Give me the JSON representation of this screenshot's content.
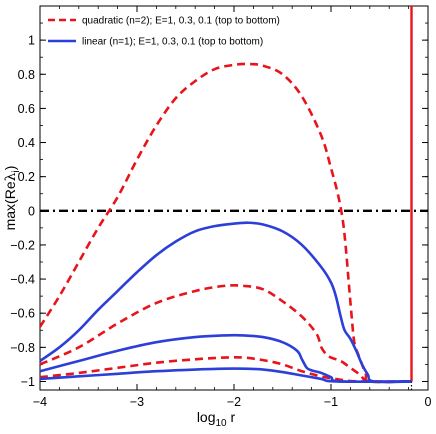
{
  "chart_data": {
    "type": "line",
    "xlabel": "log",
    "xlabel_sub": "10",
    "xlabel_tail": " r",
    "ylabel": "max(Re",
    "ylabel_sym": "λ",
    "ylabel_sub": "i",
    "ylabel_tail": ")",
    "xlim": [
      -4,
      0
    ],
    "ylim": [
      -1.05,
      1.2
    ],
    "xticks": [
      -4,
      -3,
      -2,
      -1,
      0
    ],
    "xtick_labels": [
      "−4",
      "−3",
      "−2",
      "−1",
      "0"
    ],
    "yticks": [
      -1,
      -0.8,
      -0.6,
      -0.4,
      -0.2,
      0,
      0.2,
      0.4,
      0.6,
      0.8,
      1
    ],
    "ytick_labels": [
      "−1",
      "−0.8",
      "−0.6",
      "−0.4",
      "−0.2",
      "0",
      "0.2",
      "0.4",
      "0.6",
      "0.8",
      "1"
    ],
    "grid": false,
    "legend_position": "top-left",
    "legend": [
      {
        "label": "quadratic (n=2); E=1, 0.3, 0.1 (top to bottom)",
        "color": "#e8141c",
        "style": "dashed"
      },
      {
        "label": "linear (n=1); E=1, 0.3, 0.1 (top to bottom)",
        "color": "#2c3fd9",
        "style": "solid"
      }
    ],
    "series": [
      {
        "group": "quadratic",
        "E": 1,
        "color": "#e8141c",
        "style": "dashed",
        "points": [
          [
            -4,
            -0.68
          ],
          [
            -3.8,
            -0.5
          ],
          [
            -3.6,
            -0.3
          ],
          [
            -3.4,
            -0.1
          ],
          [
            -3.2,
            0.08
          ],
          [
            -3.0,
            0.3
          ],
          [
            -2.8,
            0.5
          ],
          [
            -2.6,
            0.66
          ],
          [
            -2.4,
            0.76
          ],
          [
            -2.2,
            0.83
          ],
          [
            -2.0,
            0.855
          ],
          [
            -1.85,
            0.86
          ],
          [
            -1.7,
            0.85
          ],
          [
            -1.5,
            0.8
          ],
          [
            -1.3,
            0.67
          ],
          [
            -1.1,
            0.44
          ],
          [
            -1.0,
            0.25
          ],
          [
            -0.93,
            0.1
          ],
          [
            -0.88,
            -0.05
          ],
          [
            -0.85,
            -0.2
          ],
          [
            -0.82,
            -0.4
          ],
          [
            -0.79,
            -0.6
          ],
          [
            -0.76,
            -0.77
          ],
          [
            -0.72,
            -0.84
          ],
          [
            -0.68,
            -0.9
          ],
          [
            -0.64,
            -0.96
          ],
          [
            -0.6,
            -1.0
          ],
          [
            -0.17,
            -1.0
          ]
        ]
      },
      {
        "group": "quadratic",
        "E": 0.3,
        "color": "#e8141c",
        "style": "dashed",
        "points": [
          [
            -4,
            -0.9
          ],
          [
            -3.6,
            -0.8
          ],
          [
            -3.2,
            -0.66
          ],
          [
            -2.8,
            -0.54
          ],
          [
            -2.4,
            -0.47
          ],
          [
            -2.1,
            -0.44
          ],
          [
            -1.9,
            -0.44
          ],
          [
            -1.7,
            -0.46
          ],
          [
            -1.5,
            -0.53
          ],
          [
            -1.3,
            -0.62
          ],
          [
            -1.15,
            -0.72
          ],
          [
            -1.1,
            -0.8
          ],
          [
            -1.05,
            -0.84
          ],
          [
            -1.0,
            -0.86
          ],
          [
            -0.9,
            -0.88
          ],
          [
            -0.8,
            -0.92
          ],
          [
            -0.7,
            -0.96
          ],
          [
            -0.6,
            -1.0
          ],
          [
            -0.17,
            -1.0
          ]
        ]
      },
      {
        "group": "quadratic",
        "E": 0.1,
        "color": "#e8141c",
        "style": "dashed",
        "points": [
          [
            -4,
            -0.975
          ],
          [
            -3.6,
            -0.95
          ],
          [
            -3.2,
            -0.92
          ],
          [
            -2.8,
            -0.89
          ],
          [
            -2.4,
            -0.87
          ],
          [
            -2.1,
            -0.86
          ],
          [
            -1.9,
            -0.86
          ],
          [
            -1.7,
            -0.875
          ],
          [
            -1.5,
            -0.9
          ],
          [
            -1.3,
            -0.94
          ],
          [
            -1.1,
            -0.97
          ],
          [
            -0.9,
            -0.99
          ],
          [
            -0.7,
            -1.0
          ],
          [
            -0.17,
            -1.0
          ]
        ]
      },
      {
        "group": "linear",
        "E": 1,
        "color": "#2c3fd9",
        "style": "solid",
        "points": [
          [
            -4,
            -0.88
          ],
          [
            -3.8,
            -0.8
          ],
          [
            -3.6,
            -0.7
          ],
          [
            -3.4,
            -0.58
          ],
          [
            -3.2,
            -0.47
          ],
          [
            -3.0,
            -0.36
          ],
          [
            -2.8,
            -0.26
          ],
          [
            -2.6,
            -0.18
          ],
          [
            -2.4,
            -0.12
          ],
          [
            -2.2,
            -0.09
          ],
          [
            -2.0,
            -0.075
          ],
          [
            -1.85,
            -0.07
          ],
          [
            -1.7,
            -0.08
          ],
          [
            -1.5,
            -0.12
          ],
          [
            -1.3,
            -0.2
          ],
          [
            -1.1,
            -0.33
          ],
          [
            -1.0,
            -0.42
          ],
          [
            -0.95,
            -0.5
          ],
          [
            -0.9,
            -0.62
          ],
          [
            -0.86,
            -0.7
          ],
          [
            -0.8,
            -0.75
          ],
          [
            -0.74,
            -0.82
          ],
          [
            -0.68,
            -0.9
          ],
          [
            -0.62,
            -0.96
          ],
          [
            -0.56,
            -1.0
          ],
          [
            -0.17,
            -1.0
          ]
        ]
      },
      {
        "group": "linear",
        "E": 0.3,
        "color": "#2c3fd9",
        "style": "solid",
        "points": [
          [
            -4,
            -0.94
          ],
          [
            -3.6,
            -0.88
          ],
          [
            -3.2,
            -0.82
          ],
          [
            -2.8,
            -0.77
          ],
          [
            -2.4,
            -0.74
          ],
          [
            -2.1,
            -0.73
          ],
          [
            -1.9,
            -0.73
          ],
          [
            -1.7,
            -0.74
          ],
          [
            -1.5,
            -0.77
          ],
          [
            -1.35,
            -0.82
          ],
          [
            -1.3,
            -0.87
          ],
          [
            -1.25,
            -0.92
          ],
          [
            -1.2,
            -0.935
          ],
          [
            -1.1,
            -0.95
          ],
          [
            -1.0,
            -0.975
          ],
          [
            -0.9,
            -1.0
          ],
          [
            -0.17,
            -1.0
          ]
        ]
      },
      {
        "group": "linear",
        "E": 0.1,
        "color": "#2c3fd9",
        "style": "solid",
        "points": [
          [
            -4,
            -0.985
          ],
          [
            -3.6,
            -0.97
          ],
          [
            -3.2,
            -0.955
          ],
          [
            -2.8,
            -0.94
          ],
          [
            -2.4,
            -0.93
          ],
          [
            -2.1,
            -0.925
          ],
          [
            -1.9,
            -0.925
          ],
          [
            -1.7,
            -0.93
          ],
          [
            -1.5,
            -0.945
          ],
          [
            -1.3,
            -0.965
          ],
          [
            -1.1,
            -0.985
          ],
          [
            -0.95,
            -1.0
          ],
          [
            -0.17,
            -1.0
          ]
        ]
      }
    ],
    "reference_lines": [
      {
        "orientation": "horizontal",
        "y": 0,
        "color": "#000000",
        "style": "dashdot"
      },
      {
        "orientation": "vertical",
        "x": -0.17,
        "color": "#e8141c",
        "style": "solid"
      },
      {
        "orientation": "vertical-dotted-stub",
        "x": -0.17,
        "y_from": -1.0,
        "y_to": -1.05,
        "color": "#000000",
        "style": "dotted"
      }
    ]
  }
}
